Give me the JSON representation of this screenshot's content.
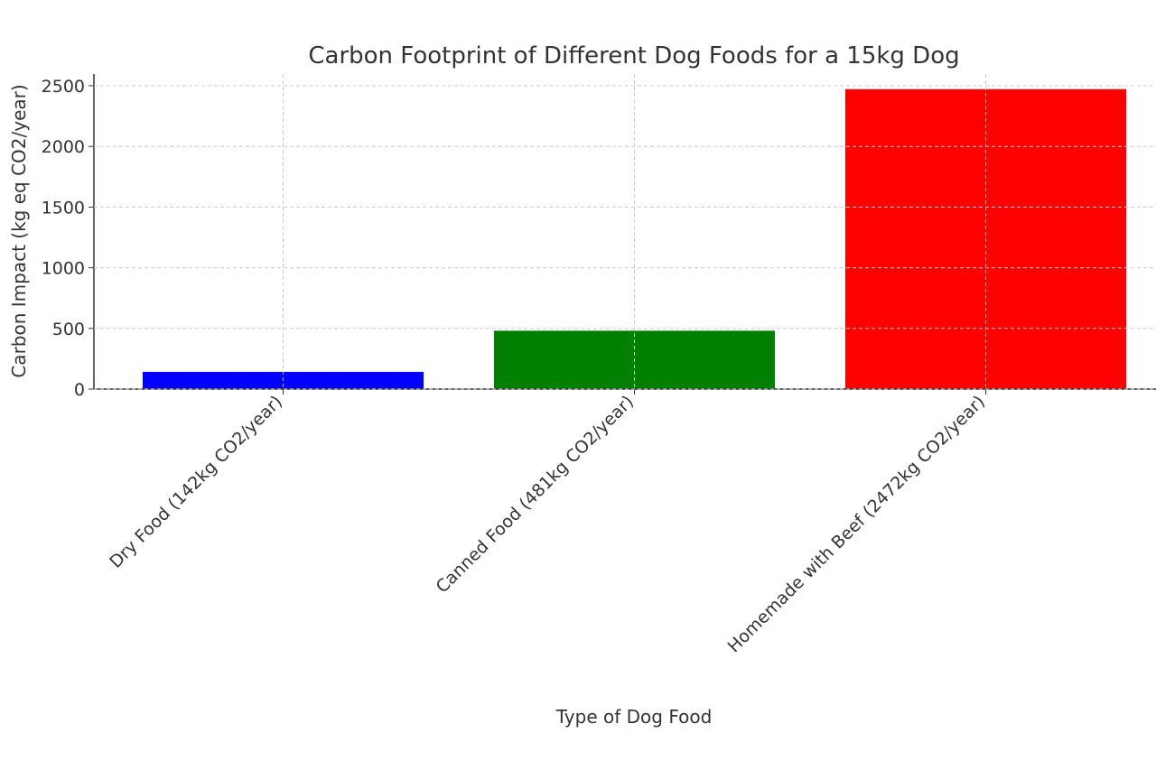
{
  "chart_data": {
    "type": "bar",
    "title": "Carbon Footprint of Different Dog Foods for a 15kg Dog",
    "xlabel": "Type of Dog Food",
    "ylabel": "Carbon Impact (kg eq CO2/year)",
    "categories": [
      "Dry Food (142kg CO2/year)",
      "Canned Food (481kg CO2/year)",
      "Homemade with Beef (2472kg CO2/year)"
    ],
    "values": [
      142,
      481,
      2472
    ],
    "colors": [
      "#0000ff",
      "#008000",
      "#ff0000"
    ],
    "ylim": [
      0,
      2600
    ],
    "yticks": [
      0,
      500,
      1000,
      1500,
      2000,
      2500
    ],
    "grid": true
  }
}
